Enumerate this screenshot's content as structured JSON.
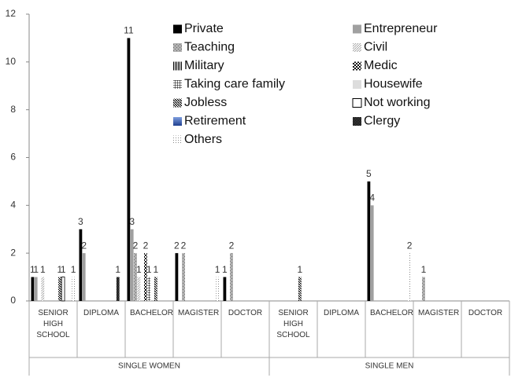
{
  "chart_data": {
    "type": "bar",
    "categories": [
      "SENIOR HIGH SCHOOL",
      "DIPLOMA",
      "BACHELOR",
      "MAGISTER",
      "DOCTOR",
      "SENIOR HIGH SCHOOL",
      "DIPLOMA",
      "BACHELOR",
      "MAGISTER",
      "DOCTOR"
    ],
    "groups": [
      "SINGLE WOMEN",
      "SINGLE MEN"
    ],
    "ylim": [
      0,
      12
    ],
    "yticks": [
      0,
      2,
      4,
      6,
      8,
      10,
      12
    ],
    "series": [
      {
        "name": "Private",
        "color": "#000000",
        "pattern": "solid",
        "values": [
          1,
          3,
          11,
          2,
          1,
          null,
          null,
          5,
          null,
          null
        ]
      },
      {
        "name": "Entrepreneur",
        "color": "#a0a0a0",
        "pattern": "solid",
        "values": [
          1,
          2,
          3,
          null,
          null,
          null,
          null,
          4,
          null,
          null
        ]
      },
      {
        "name": "Teaching",
        "color": "#9a9a9a",
        "pattern": "speckle",
        "values": [
          null,
          null,
          2,
          2,
          2,
          null,
          null,
          null,
          1,
          null
        ]
      },
      {
        "name": "Civil",
        "color": "#bbbbbb",
        "pattern": "diag-light",
        "values": [
          1,
          null,
          1,
          null,
          null,
          null,
          null,
          null,
          null,
          null
        ]
      },
      {
        "name": "Military",
        "color": "#000000",
        "pattern": "vstripe",
        "values": [
          null,
          null,
          null,
          null,
          null,
          null,
          null,
          null,
          null,
          null
        ]
      },
      {
        "name": "Medic",
        "color": "#000000",
        "pattern": "checker",
        "values": [
          null,
          null,
          2,
          null,
          null,
          null,
          null,
          null,
          null,
          null
        ]
      },
      {
        "name": "Taking care family",
        "color": "#000000",
        "pattern": "grid",
        "values": [
          null,
          null,
          1,
          null,
          null,
          null,
          null,
          null,
          null,
          null
        ]
      },
      {
        "name": "Housewife",
        "color": "#dddddd",
        "pattern": "solid",
        "values": [
          null,
          null,
          null,
          null,
          null,
          null,
          null,
          null,
          null,
          null
        ]
      },
      {
        "name": "Jobless",
        "color": "#000000",
        "pattern": "diag-dark",
        "values": [
          1,
          null,
          1,
          null,
          null,
          1,
          null,
          null,
          null,
          null
        ]
      },
      {
        "name": "Not working",
        "color": "#ffffff",
        "pattern": "outline",
        "values": [
          1,
          null,
          null,
          null,
          null,
          null,
          null,
          null,
          null,
          null
        ]
      },
      {
        "name": "Retirement",
        "color": "#1f3f8f",
        "pattern": "gradient",
        "values": [
          null,
          null,
          null,
          null,
          null,
          null,
          null,
          null,
          null,
          null
        ]
      },
      {
        "name": "Clergy",
        "color": "#000000",
        "pattern": "checker-dark",
        "values": [
          null,
          1,
          null,
          null,
          null,
          null,
          null,
          null,
          null,
          null
        ]
      },
      {
        "name": "Others",
        "color": "#888888",
        "pattern": "dots",
        "values": [
          1,
          null,
          null,
          1,
          null,
          null,
          null,
          2,
          null,
          null
        ]
      }
    ]
  }
}
